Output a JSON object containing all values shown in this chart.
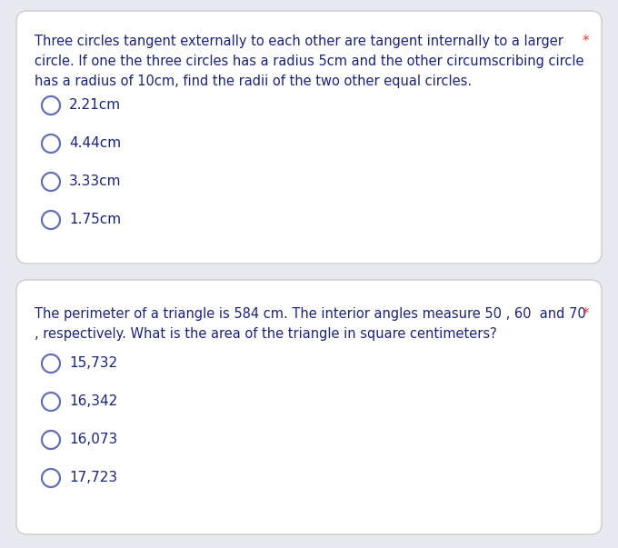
{
  "bg_color": "#e8e8f0",
  "card_color": "#ffffff",
  "card_edge_color": "#cccccc",
  "question1_text_lines": [
    "Three circles tangent externally to each other are tangent internally to a larger",
    "circle. If one the three circles has a radius 5cm and the other circumscribing circle",
    "has a radius of 10cm, find the radii of the two other equal circles."
  ],
  "question1_star": "*",
  "question1_options": [
    "2.21cm",
    "4.44cm",
    "3.33cm",
    "1.75cm"
  ],
  "question2_text_line1": "The perimeter of a triangle is 584 cm. The interior angles measure 50 , 60  and 70",
  "question2_text_line1b": " *",
  "question2_text_line2": ", respectively. What is the area of the triangle in square centimeters?",
  "question2_options": [
    "15,732",
    "16,342",
    "16,073",
    "17,723"
  ],
  "text_color": "#1a237e",
  "star_color": "#e53935",
  "circle_edge_color": "#6370b5",
  "circle_fill_color": "#ffffff",
  "font_size_question": 10.5,
  "font_size_option": 11.0
}
